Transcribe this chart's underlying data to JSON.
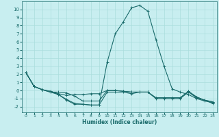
{
  "xlabel": "Humidex (Indice chaleur)",
  "bg_color": "#c8eef0",
  "grid_color": "#aadddd",
  "line_color": "#1a6b6b",
  "xlim": [
    -0.5,
    23.5
  ],
  "ylim": [
    -2.7,
    11.0
  ],
  "xticks": [
    0,
    1,
    2,
    3,
    4,
    5,
    6,
    7,
    8,
    9,
    10,
    11,
    12,
    13,
    14,
    15,
    16,
    17,
    18,
    19,
    20,
    21,
    22,
    23
  ],
  "yticks": [
    -2,
    -1,
    0,
    1,
    2,
    3,
    4,
    5,
    6,
    7,
    8,
    9,
    10
  ],
  "series": [
    {
      "x": [
        0,
        1,
        2,
        3,
        4,
        5,
        6,
        7,
        8,
        9,
        10,
        11,
        12,
        13,
        14,
        15,
        16,
        17,
        18,
        19,
        20,
        21,
        22,
        23
      ],
      "y": [
        2.2,
        0.5,
        0.1,
        -0.1,
        -0.5,
        -1.2,
        -1.7,
        -1.7,
        -1.8,
        -1.8,
        3.5,
        7.0,
        8.5,
        10.2,
        10.5,
        9.8,
        6.3,
        3.0,
        0.2,
        -0.2,
        -0.5,
        -1.0,
        -1.3,
        -1.5
      ]
    },
    {
      "x": [
        0,
        1,
        2,
        3,
        4,
        5,
        6,
        7,
        8,
        9,
        10,
        11,
        12,
        13,
        14,
        15,
        16,
        17,
        18,
        19,
        20,
        21,
        22,
        23
      ],
      "y": [
        2.2,
        0.5,
        0.1,
        -0.1,
        -0.4,
        -0.6,
        -0.5,
        -0.5,
        -0.4,
        -0.4,
        0.0,
        0.0,
        -0.1,
        -0.2,
        -0.2,
        -0.2,
        -0.9,
        -0.9,
        -0.9,
        -0.9,
        -0.1,
        -0.8,
        -1.2,
        -1.4
      ]
    },
    {
      "x": [
        0,
        1,
        2,
        3,
        4,
        5,
        6,
        7,
        8,
        9,
        10,
        11,
        12,
        13,
        14,
        15,
        16,
        17,
        18,
        19,
        20,
        21,
        22,
        23
      ],
      "y": [
        2.2,
        0.5,
        0.1,
        -0.2,
        -0.2,
        -0.3,
        -0.7,
        -1.3,
        -1.3,
        -1.3,
        0.0,
        0.0,
        -0.1,
        -0.2,
        -0.2,
        -0.2,
        -0.9,
        -0.9,
        -0.9,
        -0.9,
        -0.1,
        -0.8,
        -1.2,
        -1.4
      ]
    },
    {
      "x": [
        0,
        1,
        2,
        3,
        4,
        5,
        6,
        7,
        8,
        9,
        10,
        11,
        12,
        13,
        14,
        15,
        16,
        17,
        18,
        19,
        20,
        21,
        22,
        23
      ],
      "y": [
        2.2,
        0.5,
        0.1,
        -0.2,
        -0.5,
        -1.1,
        -1.6,
        -1.7,
        -1.8,
        -1.8,
        -0.2,
        -0.2,
        -0.2,
        -0.4,
        -0.2,
        -0.2,
        -1.0,
        -1.0,
        -1.0,
        -1.0,
        -0.2,
        -0.9,
        -1.2,
        -1.6
      ]
    }
  ]
}
